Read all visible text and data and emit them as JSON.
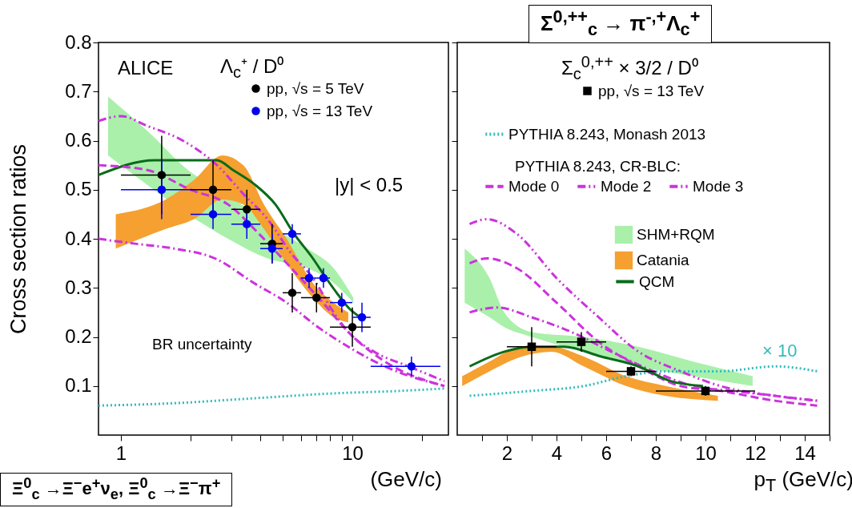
{
  "chart_data": [
    {
      "type": "scatter",
      "ylabel": "Cross section ratios",
      "xlabel": "(GeV/c)",
      "legend_title": "Λ$_{c}$⁺ / D⁰",
      "log": "x",
      "xlim": [
        0.8,
        26
      ],
      "xticks": [
        1,
        {
          "value": 2,
          "label": null
        },
        {
          "value": 3,
          "label": null
        },
        {
          "value": 4,
          "label": null
        },
        {
          "value": 5,
          "label": null
        },
        {
          "value": 6,
          "label": null
        },
        {
          "value": 7,
          "label": null
        },
        {
          "value": 8,
          "label": null
        },
        {
          "value": 9,
          "label": null
        },
        10,
        {
          "value": 20,
          "label": null
        }
      ],
      "ylim": [
        0,
        0.8
      ],
      "yticks": [
        0.1,
        0.2,
        0.3,
        0.4,
        0.5,
        0.6,
        0.7,
        0.8
      ],
      "legend": "top",
      "annotations": [
        "ALICE",
        "|y| < 0.5",
        "BR uncertainty",
        "Ξ$^{0}$$_{c}$ →Ξ$^{−}$e$^{+}$ν$_{e}$, Ξ$^{0}$$_{c}$ →Ξ$^{−}$π$^{+}$"
      ],
      "series": [
        {
          "name": "pp, √s = 5 TeV",
          "color": "#000000",
          "marker": "circle",
          "x": [
            1.5,
            2.5,
            3.5,
            4.5,
            5.5,
            7,
            10
          ],
          "values": [
            0.53,
            0.5,
            0.46,
            0.39,
            0.29,
            0.28,
            0.22
          ],
          "errors": [
            0.08,
            0.06,
            0.04,
            0.04,
            0.04,
            0.03,
            0.04
          ],
          "xerrors": [
            [
              1,
              2
            ],
            [
              2,
              3
            ],
            [
              3,
              4
            ],
            [
              4,
              5
            ],
            [
              5,
              6
            ],
            [
              6,
              8
            ],
            [
              8,
              12
            ]
          ]
        },
        {
          "name": "pp, √s = 13 TeV",
          "color": "#0000ee",
          "marker": "circle",
          "x": [
            1.5,
            2.5,
            3.5,
            4.5,
            5.5,
            6.5,
            7.5,
            9,
            11,
            18
          ],
          "values": [
            0.5,
            0.45,
            0.43,
            0.38,
            0.41,
            0.32,
            0.32,
            0.27,
            0.24,
            0.14
          ],
          "errors": [
            0.06,
            0.03,
            0.03,
            0.03,
            0.02,
            0.02,
            0.02,
            0.02,
            0.03,
            0.02
          ],
          "xerrors": [
            [
              1,
              2
            ],
            [
              2,
              3
            ],
            [
              3,
              4
            ],
            [
              4,
              5
            ],
            [
              5,
              6
            ],
            [
              6,
              7
            ],
            [
              7,
              8
            ],
            [
              8,
              10
            ],
            [
              10,
              12
            ],
            [
              12,
              24
            ]
          ]
        },
        {
          "type": "area",
          "color": "#aaf0aa",
          "x": [
            0.88,
            1.3,
            1.95,
            2.9,
            4.3,
            6.4,
            8.3,
            10.1
          ],
          "lower": [
            0.57,
            0.51,
            0.45,
            0.4,
            0.36,
            0.34,
            0.31,
            0.27
          ],
          "upper": [
            0.69,
            0.62,
            0.54,
            0.49,
            0.43,
            0.38,
            0.34,
            0.28
          ],
          "values": [
            null,
            null,
            null,
            null,
            null,
            null,
            null,
            null
          ]
        },
        {
          "type": "area",
          "color": "#f5a030",
          "x": [
            0.95,
            1.56,
            2.07,
            2.74,
            3.38,
            4.15,
            5.2,
            6.75,
            8.3,
            9.6
          ],
          "lower": [
            0.38,
            0.42,
            0.44,
            0.48,
            0.47,
            0.42,
            0.35,
            0.28,
            0.24,
            0.23
          ],
          "upper": [
            0.45,
            0.48,
            0.52,
            0.57,
            0.55,
            0.47,
            0.4,
            0.31,
            0.27,
            0.25
          ],
          "values": [
            null,
            null,
            null,
            null,
            null,
            null,
            null,
            null,
            null,
            null
          ]
        },
        {
          "type": "line",
          "color": "#0a6b1a",
          "line_style": "solid",
          "x": [
            0.8,
            1.4,
            2.1,
            2.6,
            3.05,
            3.8,
            4.65,
            5.6,
            6.75,
            7.7,
            8.55,
            9.6,
            10.8
          ],
          "values": [
            0.53,
            0.56,
            0.56,
            0.56,
            0.54,
            0.51,
            0.47,
            0.41,
            0.36,
            0.32,
            0.29,
            0.26,
            0.24
          ]
        },
        {
          "type": "line",
          "color": "#cc33dd",
          "line_style": "dashed",
          "x": [
            0.8,
            1.3,
            2,
            2.9,
            3.95,
            5.45,
            7.45,
            9.6,
            13.8,
            25
          ],
          "values": [
            0.55,
            0.54,
            0.5,
            0.47,
            0.41,
            0.34,
            0.27,
            0.21,
            0.15,
            0.1
          ]
        },
        {
          "type": "line",
          "color": "#cc33dd",
          "line_style": "dashdotdot",
          "x": [
            0.8,
            1,
            1.3,
            1.85,
            2.6,
            3.4,
            4.3,
            5.45,
            6.75,
            8.3,
            9.6,
            12.4,
            17.5,
            25
          ],
          "values": [
            0.64,
            0.65,
            0.63,
            0.6,
            0.55,
            0.49,
            0.44,
            0.37,
            0.32,
            0.25,
            0.21,
            0.17,
            0.14,
            0.11
          ]
        },
        {
          "type": "line",
          "color": "#cc33dd",
          "line_style": "dashdot",
          "x": [
            0.8,
            1.15,
            1.7,
            2.55,
            3.75,
            5.2,
            7.1,
            9.6,
            13.8,
            25
          ],
          "values": [
            0.4,
            0.39,
            0.38,
            0.36,
            0.31,
            0.27,
            0.22,
            0.18,
            0.14,
            0.1
          ]
        },
        {
          "type": "line",
          "color": "#33bbbb",
          "line_style": "dotted",
          "x": [
            0.8,
            1.7,
            3.75,
            8.3,
            16,
            25
          ],
          "values": [
            0.06,
            0.065,
            0.075,
            0.085,
            0.09,
            0.095
          ]
        }
      ]
    },
    {
      "type": "scatter",
      "xlabel": "p$_{T}$ (GeV/c)",
      "legend_title": "Σ$_{c}$$^{0,++}$ × 3/2 / D⁰",
      "xlim": [
        0,
        15
      ],
      "xticks": [
        {
          "value": 1,
          "label": null
        },
        2,
        {
          "value": 3,
          "label": null
        },
        4,
        {
          "value": 5,
          "label": null
        },
        6,
        {
          "value": 7,
          "label": null
        },
        8,
        {
          "value": 9,
          "label": null
        },
        10,
        {
          "value": 11,
          "label": null
        },
        12,
        {
          "value": 13,
          "label": null
        },
        14,
        {
          "value": 15,
          "label": null
        }
      ],
      "ylim": [
        0,
        0.8
      ],
      "yticks": [
        0.1,
        0.2,
        0.3,
        0.4,
        0.5,
        0.6,
        0.7,
        0.8
      ],
      "tick_labels": "x",
      "legend": "top",
      "annotations": [
        "PYTHIA 8.243, CR-BLC:",
        "× 10",
        "Σ$^{0,++}$$_{c}$ → π$^{-,+}$Λ$_{c}$$^{+}$"
      ],
      "series": [
        {
          "name": "pp, √s = 13 TeV",
          "color": "#000000",
          "marker": "square",
          "x": [
            3,
            5,
            7,
            10
          ],
          "values": [
            0.18,
            0.19,
            0.13,
            0.09
          ],
          "errors": [
            0.04,
            0.02,
            0.01,
            0.01
          ],
          "xerrors": [
            [
              2,
              4
            ],
            [
              4,
              6
            ],
            [
              6,
              8
            ],
            [
              8,
              12
            ]
          ]
        },
        {
          "name": "PYTHIA 8.243, Monash 2013",
          "type": "line",
          "color": "#33bbbb",
          "line_style": "dotted",
          "x": [
            0.5,
            3,
            5.1,
            6.8,
            8.4,
            10.6,
            12.8,
            14.5
          ],
          "values": [
            0.08,
            0.09,
            0.1,
            0.12,
            0.13,
            0.13,
            0.14,
            0.13
          ]
        },
        {
          "name": "Mode 0",
          "type": "line",
          "color": "#cc33dd",
          "line_style": "dashed",
          "x": [
            0.5,
            1.2,
            2.4,
            4,
            5.7,
            7.3,
            9,
            10.6,
            12.8,
            14.5
          ],
          "values": [
            0.35,
            0.36,
            0.34,
            0.27,
            0.19,
            0.14,
            0.1,
            0.09,
            0.07,
            0.06
          ]
        },
        {
          "name": "Mode 2",
          "type": "line",
          "color": "#cc33dd",
          "line_style": "dashdotdot",
          "x": [
            0.5,
            1.2,
            2.4,
            4,
            5.7,
            7.3,
            9,
            10.6,
            12.8,
            14.5
          ],
          "values": [
            0.43,
            0.44,
            0.41,
            0.32,
            0.24,
            0.17,
            0.13,
            0.1,
            0.08,
            0.07
          ]
        },
        {
          "name": "Mode 3",
          "type": "line",
          "color": "#cc33dd",
          "line_style": "dashdot",
          "x": [
            0.5,
            1.6,
            3,
            4.6,
            6.2,
            7.9,
            9.5,
            11.1,
            12.8,
            14.5
          ],
          "values": [
            0.25,
            0.26,
            0.24,
            0.21,
            0.17,
            0.13,
            0.1,
            0.09,
            0.08,
            0.07
          ]
        },
        {
          "name": "SHM+RQM",
          "type": "area",
          "color": "#aaf0aa",
          "x": [
            0.3,
            1.3,
            1.9,
            3,
            5.1,
            7.3,
            9.5,
            11.9
          ],
          "lower": [
            0.27,
            0.24,
            0.22,
            0.2,
            0.17,
            0.14,
            0.12,
            0.1
          ],
          "upper": [
            0.38,
            0.32,
            0.25,
            0.21,
            0.2,
            0.18,
            0.15,
            0.12
          ],
          "values": [
            null,
            null,
            null,
            null,
            null,
            null,
            null,
            null
          ]
        },
        {
          "name": "Catania",
          "type": "area",
          "color": "#f5a030",
          "x": [
            0.2,
            1.3,
            2.6,
            3.8,
            5.1,
            6.8,
            8.4,
            10.5
          ],
          "lower": [
            0.1,
            0.13,
            0.16,
            0.17,
            0.14,
            0.1,
            0.08,
            0.07
          ],
          "upper": [
            0.12,
            0.15,
            0.18,
            0.18,
            0.16,
            0.12,
            0.1,
            0.08
          ],
          "values": [
            null,
            null,
            null,
            null,
            null,
            null,
            null,
            null
          ]
        },
        {
          "name": "QCM",
          "type": "line",
          "color": "#0a6b1a",
          "line_style": "solid",
          "x": [
            0.5,
            1.9,
            3,
            4.3,
            5.8,
            7.3,
            8.6,
            9.9
          ],
          "values": [
            0.14,
            0.17,
            0.18,
            0.18,
            0.16,
            0.14,
            0.11,
            0.1
          ]
        }
      ]
    }
  ]
}
